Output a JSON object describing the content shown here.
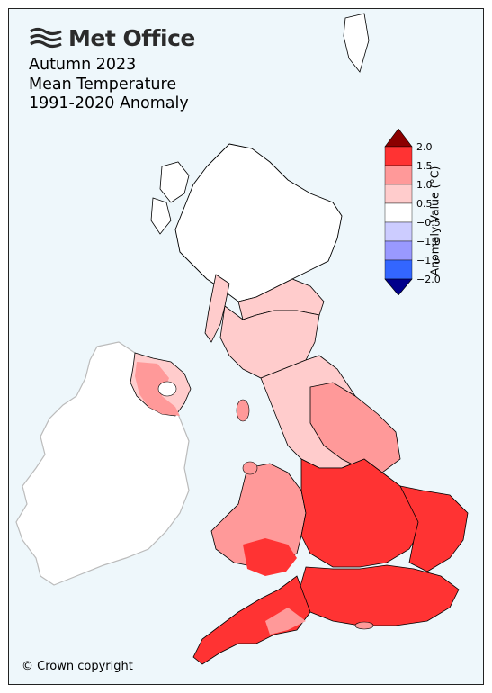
{
  "brand": {
    "name": "Met Office",
    "logo_icon": "met-office-wave-icon"
  },
  "title": {
    "line1": "Autumn 2023",
    "line2": "Mean Temperature",
    "line3": "1991-2020 Anomaly"
  },
  "footer": {
    "copyright": "© Crown copyright"
  },
  "legend": {
    "title": "Anomaly Value (°C)",
    "ticks": [
      "2.0",
      "1.5",
      "1.0",
      "0.5",
      "−0.5",
      "−1.0",
      "−1.5",
      "−2.0"
    ],
    "bins": [
      {
        "range": "> 2.0",
        "color": "#8b0000"
      },
      {
        "range": "1.5 to 2.0",
        "color": "#ff3333"
      },
      {
        "range": "1.0 to 1.5",
        "color": "#ff9999"
      },
      {
        "range": "0.5 to 1.0",
        "color": "#ffcccc"
      },
      {
        "range": "-0.5 to 0.5",
        "color": "#ffffff"
      },
      {
        "range": "-1.0 to -0.5",
        "color": "#ccccff"
      },
      {
        "range": "-1.5 to -1.0",
        "color": "#9999ff"
      },
      {
        "range": "-2.0 to -1.5",
        "color": "#3366ff"
      },
      {
        "range": "< -2.0",
        "color": "#00008b"
      }
    ]
  },
  "map_colors": {
    "neutral": "#ffffff",
    "light": "#ffcccc",
    "medium": "#ff9999",
    "strong": "#ff3333",
    "ireland": "#ffffff",
    "ireland_border": "#bbbbbb",
    "border": "#000000"
  }
}
